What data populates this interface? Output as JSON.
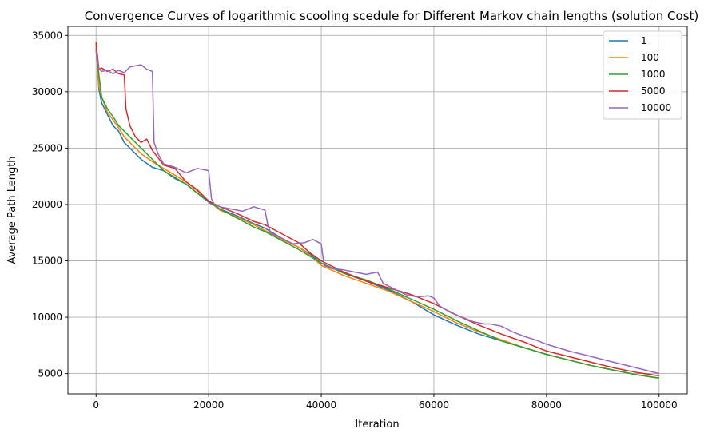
{
  "chart_data": {
    "type": "line",
    "title": "Convergence Curves of logarithmic scooling scedule for Different Markov chain lengths (solution Cost)",
    "xlabel": "Iteration",
    "ylabel": "Average Path Length",
    "xlim": [
      -5000,
      105000
    ],
    "ylim": [
      3200,
      35800
    ],
    "xticks": [
      0,
      20000,
      40000,
      60000,
      80000,
      100000
    ],
    "xtick_labels": [
      "0",
      "20000",
      "40000",
      "60000",
      "80000",
      "100000"
    ],
    "yticks": [
      5000,
      10000,
      15000,
      20000,
      25000,
      30000,
      35000
    ],
    "ytick_labels": [
      "5000",
      "10000",
      "15000",
      "20000",
      "25000",
      "30000",
      "35000"
    ],
    "grid": true,
    "legend_position": "top-right",
    "series": [
      {
        "name": "1",
        "color": "#1f77b4",
        "x": [
          0,
          500,
          1000,
          2000,
          3000,
          4000,
          5000,
          6000,
          8000,
          10000,
          12000,
          14000,
          16000,
          18000,
          20000,
          22000,
          25000,
          28000,
          30000,
          33000,
          36000,
          38000,
          40000,
          44000,
          48000,
          52000,
          56000,
          60000,
          64000,
          68000,
          72000,
          76000,
          80000,
          84000,
          88000,
          92000,
          96000,
          100000
        ],
        "y": [
          34200,
          30200,
          29000,
          28000,
          27000,
          26500,
          25500,
          25000,
          24000,
          23300,
          23000,
          22300,
          21800,
          21000,
          20200,
          19600,
          19000,
          18300,
          17900,
          17000,
          16200,
          15600,
          14800,
          13900,
          13200,
          12400,
          11400,
          10200,
          9300,
          8500,
          7900,
          7300,
          6700,
          6200,
          5700,
          5300,
          4900,
          4600
        ]
      },
      {
        "name": "100",
        "color": "#ff7f0e",
        "x": [
          0,
          500,
          1000,
          2000,
          3000,
          4000,
          5000,
          6000,
          8000,
          10000,
          12000,
          14000,
          16000,
          18000,
          20000,
          22000,
          25000,
          28000,
          30000,
          33000,
          36000,
          38000,
          40000,
          44000,
          48000,
          52000,
          56000,
          60000,
          64000,
          68000,
          72000,
          76000,
          80000,
          84000,
          88000,
          92000,
          96000,
          100000
        ],
        "y": [
          34100,
          30500,
          29500,
          28200,
          27500,
          26800,
          26000,
          25500,
          24500,
          23800,
          23200,
          22600,
          22000,
          21200,
          20300,
          19500,
          18900,
          18200,
          17700,
          16900,
          16200,
          15500,
          14600,
          13700,
          13000,
          12300,
          11400,
          10500,
          9500,
          8700,
          8000,
          7300,
          6700,
          6200,
          5700,
          5300,
          4900,
          4600
        ]
      },
      {
        "name": "1000",
        "color": "#2ca02c",
        "x": [
          0,
          500,
          1000,
          2000,
          3000,
          4000,
          5000,
          6000,
          8000,
          10000,
          12000,
          14000,
          16000,
          18000,
          20000,
          22000,
          25000,
          28000,
          30000,
          33000,
          36000,
          38000,
          40000,
          44000,
          48000,
          52000,
          56000,
          60000,
          64000,
          68000,
          72000,
          76000,
          80000,
          84000,
          88000,
          92000,
          96000,
          100000
        ],
        "y": [
          33800,
          31500,
          29500,
          28500,
          27800,
          27000,
          26500,
          26000,
          25000,
          24000,
          23000,
          22400,
          21800,
          21000,
          20300,
          19600,
          18800,
          18000,
          17600,
          16800,
          16000,
          15400,
          14800,
          13900,
          13300,
          12500,
          11600,
          10700,
          9700,
          8800,
          7900,
          7300,
          6700,
          6200,
          5700,
          5300,
          4900,
          4600
        ]
      },
      {
        "name": "5000",
        "color": "#d62728",
        "x": [
          0,
          500,
          1000,
          2000,
          3000,
          4000,
          5000,
          5300,
          6000,
          7000,
          8000,
          9000,
          10000,
          12000,
          14000,
          16000,
          18000,
          20000,
          22000,
          25000,
          28000,
          30000,
          33000,
          36000,
          38000,
          40000,
          44000,
          48000,
          52000,
          56000,
          60000,
          64000,
          68000,
          72000,
          76000,
          80000,
          84000,
          88000,
          92000,
          96000,
          100000
        ],
        "y": [
          34400,
          32000,
          32100,
          31800,
          32000,
          31600,
          31500,
          28500,
          27000,
          26000,
          25500,
          25800,
          24800,
          23500,
          23200,
          22000,
          21300,
          20300,
          19800,
          19200,
          18500,
          18200,
          17400,
          16600,
          15700,
          15000,
          14000,
          13200,
          12600,
          12000,
          11200,
          10200,
          9300,
          8500,
          7800,
          7000,
          6500,
          6000,
          5500,
          5100,
          4800
        ]
      },
      {
        "name": "10000",
        "color": "#9467bd",
        "x": [
          0,
          500,
          1000,
          2000,
          3000,
          4000,
          5000,
          6000,
          7000,
          8000,
          9000,
          10000,
          10300,
          11000,
          12000,
          14000,
          16000,
          18000,
          20000,
          20500,
          21000,
          22000,
          24000,
          26000,
          28000,
          30000,
          30500,
          31000,
          33000,
          35000,
          37000,
          38500,
          40000,
          40500,
          42000,
          44000,
          46000,
          48000,
          50000,
          51000,
          53000,
          55000,
          57000,
          59000,
          60000,
          61000,
          63000,
          65000,
          67000,
          69000,
          70000,
          72000,
          74000,
          76000,
          78000,
          80000,
          84000,
          88000,
          92000,
          96000,
          100000
        ],
        "y": [
          33600,
          32000,
          31800,
          31900,
          31600,
          31900,
          31700,
          32200,
          32300,
          32400,
          32000,
          31800,
          25500,
          24500,
          23600,
          23300,
          22800,
          23200,
          23000,
          20500,
          20000,
          19800,
          19600,
          19400,
          19800,
          19500,
          18200,
          17500,
          17000,
          16500,
          16600,
          16900,
          16500,
          14600,
          14300,
          14200,
          14000,
          13800,
          14000,
          13000,
          12500,
          12000,
          11800,
          11900,
          11700,
          11000,
          10400,
          10000,
          9600,
          9400,
          9400,
          9200,
          8700,
          8300,
          8000,
          7600,
          7000,
          6500,
          6000,
          5500,
          5000
        ]
      }
    ]
  }
}
